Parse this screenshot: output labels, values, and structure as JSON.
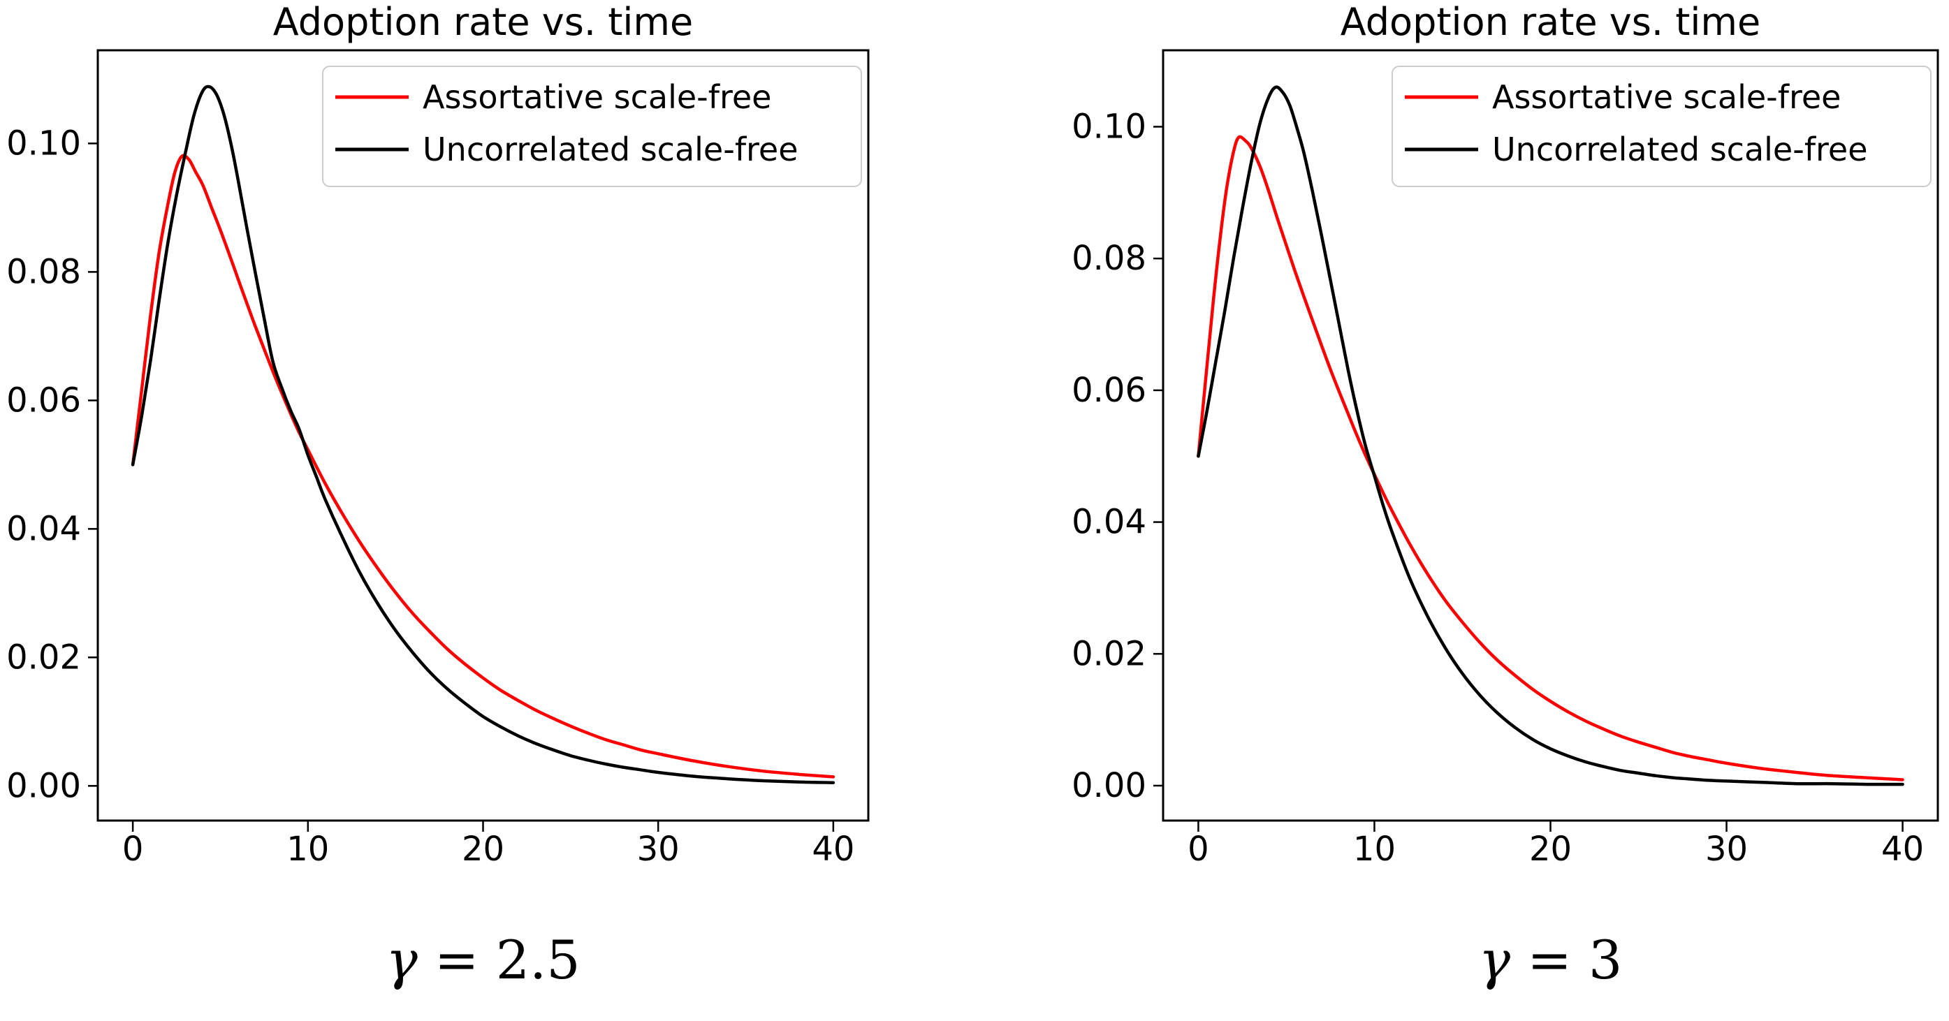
{
  "figure": {
    "background": "#ffffff",
    "spine_color": "#000000",
    "text_color": "#000000",
    "legend_border_color": "#cccccc",
    "accent_red": "#ff0000",
    "accent_black": "#000000"
  },
  "chart_data": [
    {
      "type": "line",
      "title": "Adoption rate vs. time",
      "caption": {
        "symbol": "γ",
        "equals_value": " = 2.5"
      },
      "xlabel": "",
      "ylabel": "",
      "xlim": [
        -2,
        42
      ],
      "ylim": [
        -0.0054,
        0.1145
      ],
      "grid": false,
      "legend_position": "upper right",
      "x_ticks": [
        0,
        10,
        20,
        30,
        40
      ],
      "x_tick_labels": [
        "0",
        "10",
        "20",
        "30",
        "40"
      ],
      "y_ticks": [
        0.0,
        0.02,
        0.04,
        0.06,
        0.08,
        0.1
      ],
      "y_tick_labels": [
        "0.00",
        "0.02",
        "0.04",
        "0.06",
        "0.08",
        "0.10"
      ],
      "legend": [
        {
          "label": "Assortative scale-free",
          "color": "#ff0000"
        },
        {
          "label": "Uncorrelated scale-free",
          "color": "#000000"
        }
      ],
      "series": [
        {
          "name": "Assortative scale-free",
          "color": "#ff0000",
          "points": [
            [
              0,
              0.05
            ],
            [
              0.5,
              0.0615
            ],
            [
              1,
              0.073
            ],
            [
              1.5,
              0.083
            ],
            [
              2,
              0.0905
            ],
            [
              2.4,
              0.0955
            ],
            [
              2.8,
              0.098
            ],
            [
              3.2,
              0.0975
            ],
            [
              3.6,
              0.0955
            ],
            [
              4,
              0.0935
            ],
            [
              4.5,
              0.09
            ],
            [
              5,
              0.0865
            ],
            [
              5.5,
              0.0828
            ],
            [
              6,
              0.079
            ],
            [
              6.5,
              0.0752
            ],
            [
              7,
              0.0715
            ],
            [
              7.5,
              0.068
            ],
            [
              8,
              0.0645
            ],
            [
              8.5,
              0.0612
            ],
            [
              9,
              0.058
            ],
            [
              9.5,
              0.055
            ],
            [
              10,
              0.0523
            ],
            [
              11,
              0.047
            ],
            [
              12,
              0.0422
            ],
            [
              13,
              0.0378
            ],
            [
              14,
              0.0338
            ],
            [
              15,
              0.0301
            ],
            [
              16,
              0.0268
            ],
            [
              17,
              0.0239
            ],
            [
              18,
              0.0212
            ],
            [
              19,
              0.0189
            ],
            [
              20,
              0.0168
            ],
            [
              21,
              0.0149
            ],
            [
              22,
              0.0133
            ],
            [
              23,
              0.0118
            ],
            [
              24,
              0.0105
            ],
            [
              25,
              0.0093
            ],
            [
              26,
              0.0082
            ],
            [
              27,
              0.0072
            ],
            [
              28,
              0.0064
            ],
            [
              29,
              0.0056
            ],
            [
              30,
              0.005
            ],
            [
              32,
              0.0039
            ],
            [
              34,
              0.003
            ],
            [
              36,
              0.0023
            ],
            [
              38,
              0.0018
            ],
            [
              40,
              0.0014
            ]
          ]
        },
        {
          "name": "Uncorrelated scale-free",
          "color": "#000000",
          "points": [
            [
              0,
              0.05
            ],
            [
              0.5,
              0.0575
            ],
            [
              1,
              0.066
            ],
            [
              1.5,
              0.0755
            ],
            [
              2,
              0.0845
            ],
            [
              2.5,
              0.092
            ],
            [
              3,
              0.0985
            ],
            [
              3.5,
              0.1045
            ],
            [
              4,
              0.1082
            ],
            [
              4.4,
              0.1088
            ],
            [
              4.8,
              0.1075
            ],
            [
              5.2,
              0.1045
            ],
            [
              5.6,
              0.1
            ],
            [
              6,
              0.0945
            ],
            [
              6.5,
              0.087
            ],
            [
              7,
              0.0798
            ],
            [
              7.5,
              0.0728
            ],
            [
              8,
              0.066
            ],
            [
              8.5,
              0.062
            ],
            [
              9,
              0.0585
            ],
            [
              9.5,
              0.0555
            ],
            [
              10,
              0.0515
            ],
            [
              10.5,
              0.048
            ],
            [
              11,
              0.0445
            ],
            [
              12,
              0.0385
            ],
            [
              13,
              0.033
            ],
            [
              14,
              0.0283
            ],
            [
              15,
              0.0242
            ],
            [
              16,
              0.0207
            ],
            [
              17,
              0.0176
            ],
            [
              18,
              0.015
            ],
            [
              19,
              0.0128
            ],
            [
              20,
              0.0108
            ],
            [
              21,
              0.0092
            ],
            [
              22,
              0.0078
            ],
            [
              23,
              0.0066
            ],
            [
              24,
              0.0056
            ],
            [
              25,
              0.0047
            ],
            [
              26,
              0.004
            ],
            [
              27,
              0.0034
            ],
            [
              28,
              0.0029
            ],
            [
              29,
              0.0025
            ],
            [
              30,
              0.0021
            ],
            [
              32,
              0.0015
            ],
            [
              34,
              0.0011
            ],
            [
              36,
              0.0008
            ],
            [
              38,
              0.0006
            ],
            [
              40,
              0.0005
            ]
          ]
        }
      ]
    },
    {
      "type": "line",
      "title": "Adoption rate vs. time",
      "caption": {
        "symbol": "γ",
        "equals_value": " = 3"
      },
      "xlabel": "",
      "ylabel": "",
      "xlim": [
        -2,
        42
      ],
      "ylim": [
        -0.0053,
        0.1116
      ],
      "grid": false,
      "legend_position": "upper right",
      "x_ticks": [
        0,
        10,
        20,
        30,
        40
      ],
      "x_tick_labels": [
        "0",
        "10",
        "20",
        "30",
        "40"
      ],
      "y_ticks": [
        0.0,
        0.02,
        0.04,
        0.06,
        0.08,
        0.1
      ],
      "y_tick_labels": [
        "0.00",
        "0.02",
        "0.04",
        "0.06",
        "0.08",
        "0.10"
      ],
      "legend": [
        {
          "label": "Assortative scale-free",
          "color": "#ff0000"
        },
        {
          "label": "Uncorrelated scale-free",
          "color": "#000000"
        }
      ],
      "series": [
        {
          "name": "Assortative scale-free",
          "color": "#ff0000",
          "points": [
            [
              0,
              0.05
            ],
            [
              0.4,
              0.0612
            ],
            [
              0.8,
              0.0722
            ],
            [
              1.2,
              0.0822
            ],
            [
              1.6,
              0.0905
            ],
            [
              2,
              0.0962
            ],
            [
              2.3,
              0.0984
            ],
            [
              2.7,
              0.0978
            ],
            [
              3,
              0.0968
            ],
            [
              3.5,
              0.094
            ],
            [
              4,
              0.0902
            ],
            [
              4.5,
              0.086
            ],
            [
              5,
              0.082
            ],
            [
              5.5,
              0.078
            ],
            [
              6,
              0.0742
            ],
            [
              6.5,
              0.0705
            ],
            [
              7,
              0.0668
            ],
            [
              7.5,
              0.0632
            ],
            [
              8,
              0.0598
            ],
            [
              8.5,
              0.0565
            ],
            [
              9,
              0.0532
            ],
            [
              9.5,
              0.0501
            ],
            [
              10,
              0.0472
            ],
            [
              10.5,
              0.0444
            ],
            [
              11,
              0.0417
            ],
            [
              12,
              0.0367
            ],
            [
              13,
              0.0322
            ],
            [
              14,
              0.0282
            ],
            [
              15,
              0.0248
            ],
            [
              16,
              0.0217
            ],
            [
              17,
              0.019
            ],
            [
              18,
              0.0167
            ],
            [
              19,
              0.0146
            ],
            [
              20,
              0.0128
            ],
            [
              21,
              0.0112
            ],
            [
              22,
              0.0098
            ],
            [
              23,
              0.0086
            ],
            [
              24,
              0.0075
            ],
            [
              25,
              0.0066
            ],
            [
              26,
              0.0058
            ],
            [
              27,
              0.005
            ],
            [
              28,
              0.0044
            ],
            [
              29,
              0.0039
            ],
            [
              30,
              0.0034
            ],
            [
              32,
              0.0026
            ],
            [
              34,
              0.002
            ],
            [
              36,
              0.0015
            ],
            [
              38,
              0.0012
            ],
            [
              40,
              0.0009
            ]
          ]
        },
        {
          "name": "Uncorrelated scale-free",
          "color": "#000000",
          "points": [
            [
              0,
              0.05
            ],
            [
              0.5,
              0.057
            ],
            [
              1,
              0.0645
            ],
            [
              1.5,
              0.072
            ],
            [
              2,
              0.08
            ],
            [
              2.5,
              0.0875
            ],
            [
              3,
              0.0945
            ],
            [
              3.5,
              0.1005
            ],
            [
              4,
              0.1045
            ],
            [
              4.4,
              0.106
            ],
            [
              4.8,
              0.1052
            ],
            [
              5.2,
              0.1032
            ],
            [
              5.6,
              0.0998
            ],
            [
              6,
              0.096
            ],
            [
              6.5,
              0.09
            ],
            [
              7,
              0.0835
            ],
            [
              7.5,
              0.0768
            ],
            [
              8,
              0.07
            ],
            [
              8.5,
              0.0632
            ],
            [
              9,
              0.057
            ],
            [
              9.5,
              0.0515
            ],
            [
              10,
              0.047
            ],
            [
              10.5,
              0.0425
            ],
            [
              11,
              0.0385
            ],
            [
              12,
              0.0315
            ],
            [
              13,
              0.0258
            ],
            [
              14,
              0.021
            ],
            [
              15,
              0.017
            ],
            [
              16,
              0.0137
            ],
            [
              17,
              0.011
            ],
            [
              18,
              0.0088
            ],
            [
              19,
              0.007
            ],
            [
              20,
              0.0056
            ],
            [
              21,
              0.0045
            ],
            [
              22,
              0.0036
            ],
            [
              23,
              0.0029
            ],
            [
              24,
              0.0023
            ],
            [
              25,
              0.0019
            ],
            [
              26,
              0.0015
            ],
            [
              27,
              0.0012
            ],
            [
              28,
              0.001
            ],
            [
              29,
              0.0008
            ],
            [
              30,
              0.0007
            ],
            [
              32,
              0.0005
            ],
            [
              34,
              0.0003
            ],
            [
              36,
              0.0003
            ],
            [
              38,
              0.0002
            ],
            [
              40,
              0.0002
            ]
          ]
        }
      ]
    }
  ]
}
